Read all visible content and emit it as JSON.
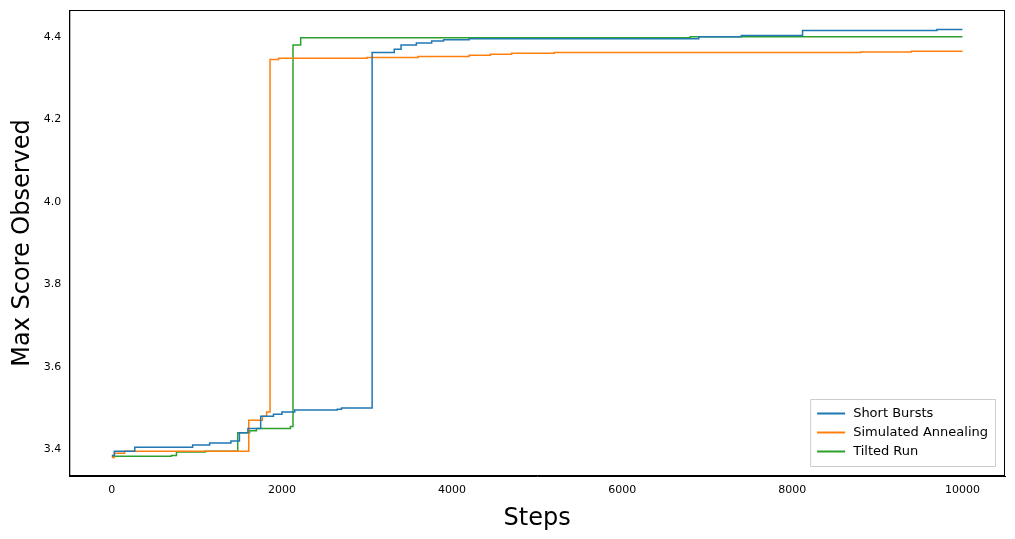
{
  "chart_data": {
    "type": "line",
    "line_style": "step",
    "x_label": "Steps",
    "y_label": "Max Score Observed",
    "xlim": [
      -500,
      10500
    ],
    "xticks": [
      0,
      2000,
      4000,
      6000,
      8000,
      10000
    ],
    "ylim": [
      3.335,
      4.465
    ],
    "yticks": [
      3.4,
      3.6,
      3.8,
      {
        "value": 4,
        "label": "4.0"
      },
      4.2,
      4.4
    ],
    "grid": false,
    "legend": "lower right",
    "series": [
      {
        "name": "Short Bursts",
        "color": "#1f77b4",
        "x": [
          0,
          30,
          270,
          950,
          1150,
          1400,
          1500,
          1600,
          1750,
          1900,
          2000,
          2150,
          2650,
          2700,
          3060,
          3320,
          3400,
          3580,
          3760,
          3900,
          4200,
          6900,
          7400,
          8120,
          9700,
          10000
        ],
        "values": [
          3.385,
          3.395,
          3.405,
          3.41,
          3.415,
          3.42,
          3.44,
          3.45,
          3.48,
          3.485,
          3.49,
          3.495,
          3.497,
          3.5,
          4.362,
          4.37,
          4.38,
          4.385,
          4.39,
          4.393,
          4.395,
          4.4,
          4.403,
          4.415,
          4.418,
          4.418
        ]
      },
      {
        "name": "Simulated Annealing",
        "color": "#ff7f0e",
        "x": [
          0,
          30,
          150,
          1610,
          1770,
          1820,
          1860,
          1960,
          3000,
          3600,
          4200,
          4450,
          4700,
          5200,
          8800,
          9400,
          10000
        ],
        "values": [
          3.38,
          3.39,
          3.395,
          3.47,
          3.48,
          3.49,
          4.345,
          4.348,
          4.35,
          4.352,
          4.355,
          4.358,
          4.36,
          4.362,
          4.363,
          4.365,
          4.365
        ]
      },
      {
        "name": "Tilted Run",
        "color": "#2ca02c",
        "x": [
          0,
          700,
          760,
          1100,
          1480,
          1620,
          1700,
          2100,
          2130,
          2220,
          6800,
          10000
        ],
        "values": [
          3.383,
          3.385,
          3.393,
          3.395,
          3.44,
          3.445,
          3.45,
          3.455,
          4.38,
          4.398,
          4.4,
          4.4
        ]
      }
    ]
  }
}
